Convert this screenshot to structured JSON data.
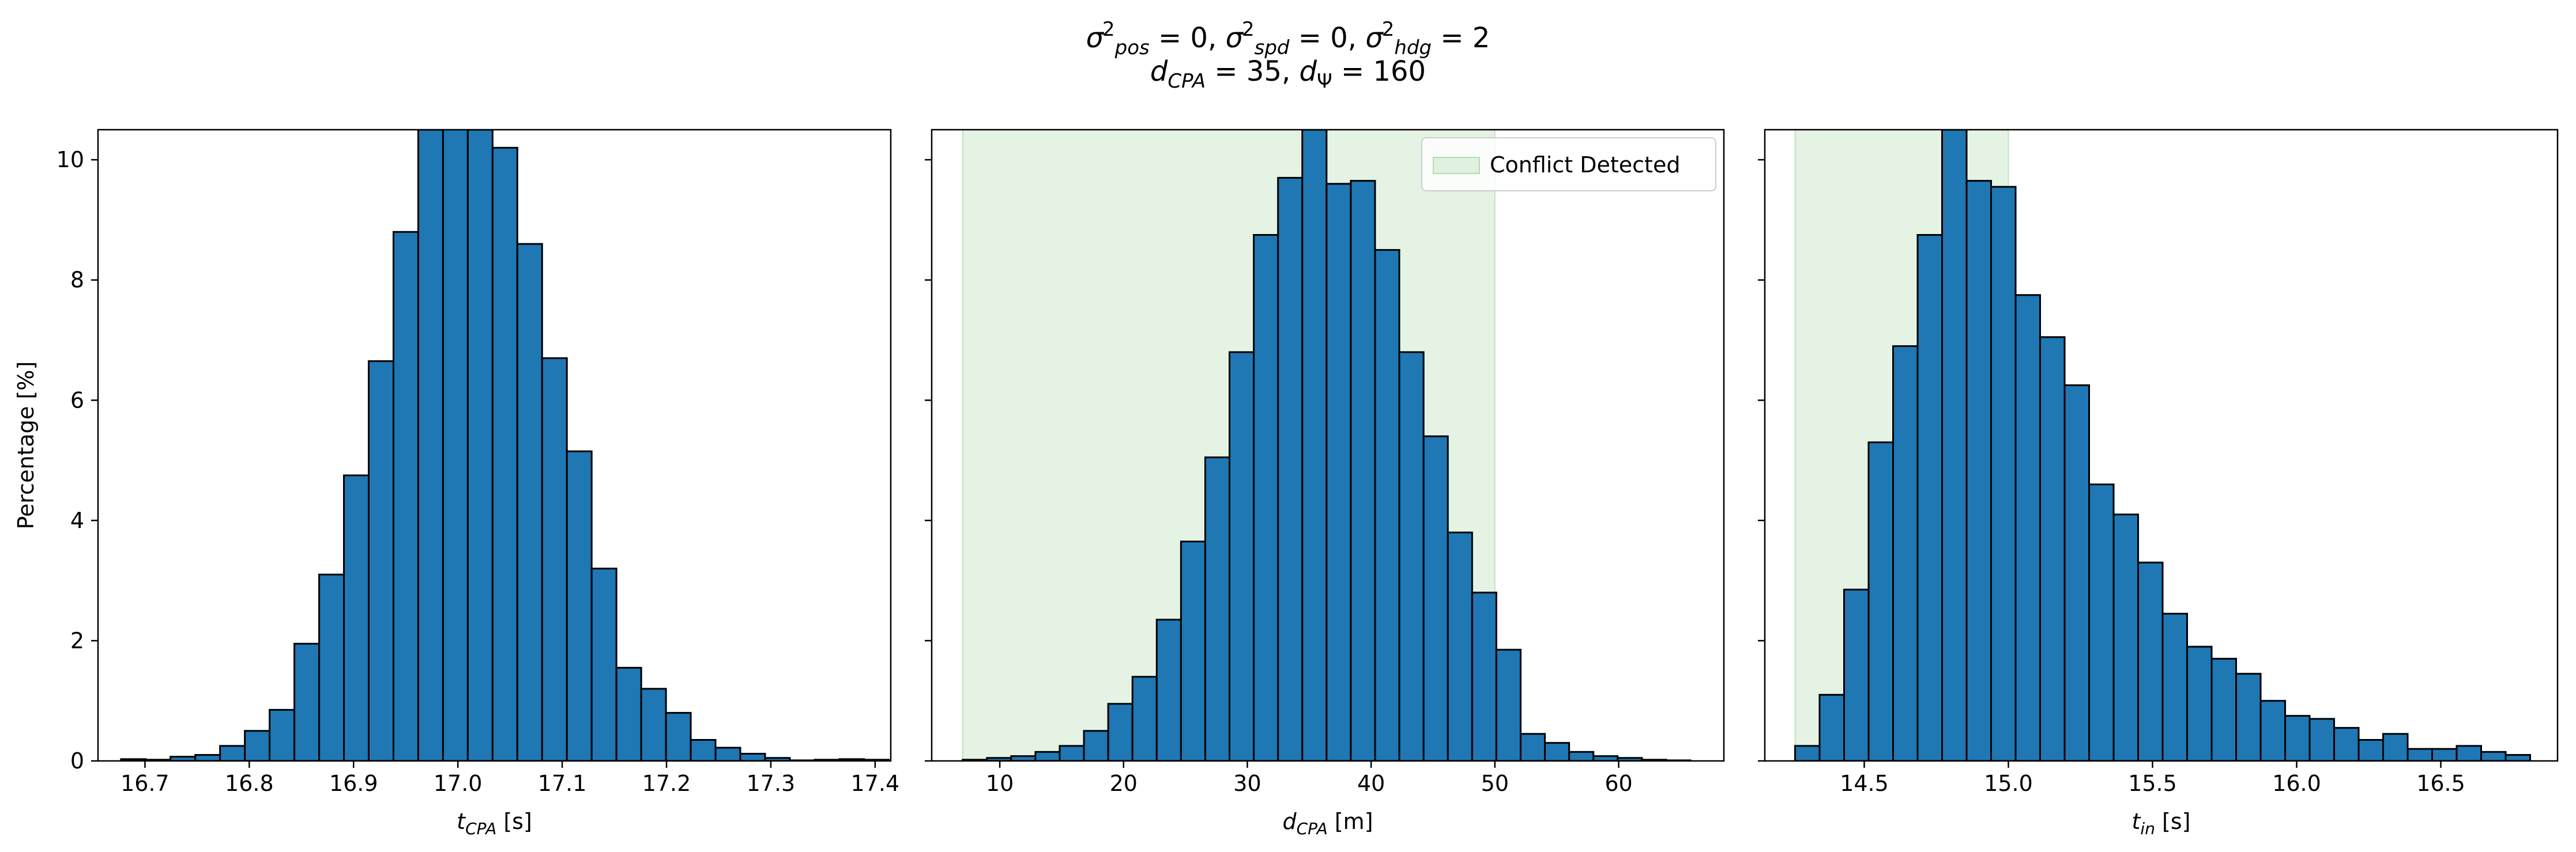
{
  "figure_title": {
    "line1": "σ²pos = 0, σ²spd = 0, σ²hdg = 2",
    "line2": "dCPA = 35, dΨ = 160"
  },
  "chart_data": [
    {
      "type": "bar",
      "panel": "left",
      "xlabel": "t_CPA [s]",
      "ylabel": "Percentage [%]",
      "xlim": [
        16.655,
        17.415
      ],
      "ylim": [
        0,
        10.5
      ],
      "xticks": [
        16.7,
        16.8,
        16.9,
        17.0,
        17.1,
        17.2,
        17.3,
        17.4
      ],
      "yticks": [
        0,
        2,
        4,
        6,
        8,
        10
      ],
      "bin_start": 16.677,
      "bin_width": 0.02375,
      "values": [
        0.03,
        0.02,
        0.07,
        0.1,
        0.25,
        0.5,
        0.85,
        1.95,
        3.1,
        4.75,
        6.65,
        8.8,
        10.5,
        10.55,
        10.5,
        10.2,
        8.6,
        6.7,
        5.15,
        3.2,
        1.55,
        1.2,
        0.8,
        0.35,
        0.22,
        0.12,
        0.05,
        0.01,
        0.02,
        0.03,
        0.02
      ],
      "bar_color": "#1f77b4",
      "edge_color": "#000000"
    },
    {
      "type": "bar",
      "panel": "middle",
      "xlabel": "d_CPA [m]",
      "xlim": [
        4.5,
        68.5
      ],
      "ylim": [
        0,
        10.5
      ],
      "xticks": [
        10,
        20,
        30,
        40,
        50,
        60
      ],
      "bin_start": 7.0,
      "bin_width": 1.96,
      "values": [
        0.02,
        0.05,
        0.08,
        0.15,
        0.25,
        0.5,
        0.95,
        1.4,
        2.35,
        3.65,
        5.05,
        6.8,
        8.75,
        9.7,
        10.5,
        9.6,
        9.65,
        8.5,
        6.8,
        5.4,
        3.8,
        2.8,
        1.85,
        0.45,
        0.3,
        0.15,
        0.08,
        0.05,
        0.02,
        0.01
      ],
      "bar_color": "#1f77b4",
      "edge_color": "#000000",
      "shaded_region": {
        "label": "Conflict Detected",
        "x_range": [
          7.0,
          50.0
        ],
        "color": "#2ca02c",
        "opacity": 0.12
      },
      "legend": {
        "entries": [
          "Conflict Detected"
        ],
        "position": "top-right"
      }
    },
    {
      "type": "bar",
      "panel": "right",
      "xlabel": "t_in [s]",
      "xlim": [
        14.155,
        16.905
      ],
      "ylim": [
        0,
        10.5
      ],
      "xticks": [
        14.5,
        15.0,
        15.5,
        16.0,
        16.5
      ],
      "bin_start": 14.26,
      "bin_width": 0.085,
      "values": [
        0.25,
        1.1,
        2.85,
        5.3,
        6.9,
        8.75,
        10.5,
        9.65,
        9.55,
        7.75,
        7.05,
        6.25,
        4.6,
        4.1,
        3.3,
        2.45,
        1.9,
        1.7,
        1.45,
        1.0,
        0.75,
        0.7,
        0.55,
        0.35,
        0.45,
        0.2,
        0.2,
        0.25,
        0.15,
        0.1
      ],
      "bar_color": "#1f77b4",
      "edge_color": "#000000",
      "shaded_region": {
        "x_range": [
          14.26,
          15.0
        ],
        "color": "#2ca02c",
        "opacity": 0.12
      }
    }
  ]
}
